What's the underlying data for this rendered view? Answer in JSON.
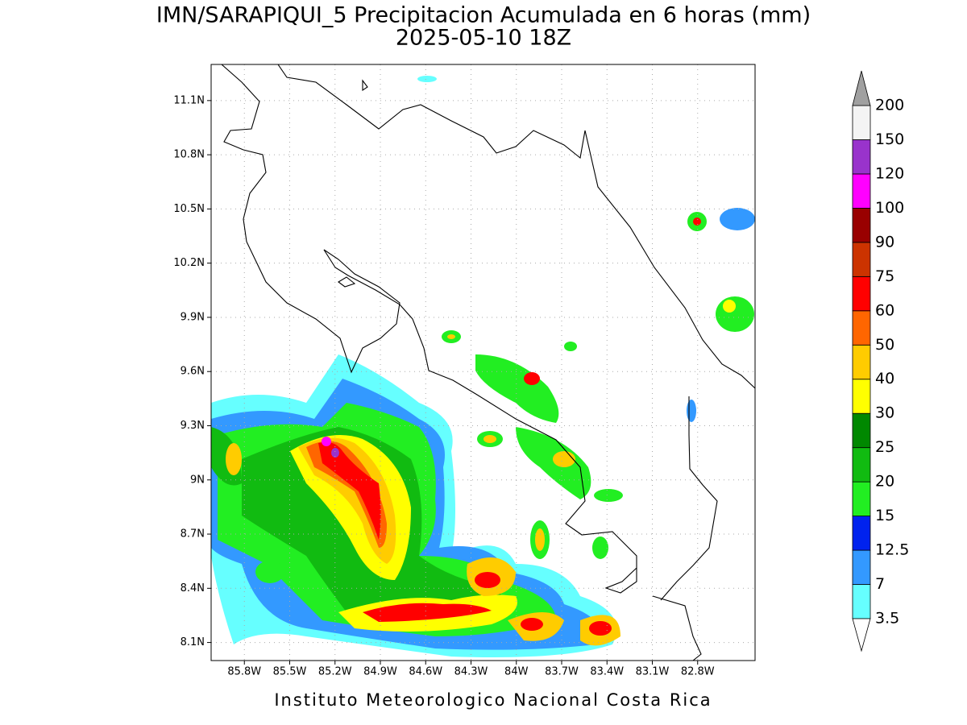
{
  "title": "IMN/SARAPIQUI_5 Precipitacion Acumulada en 6 horas (mm)",
  "subtitle": "2025-05-10 18Z",
  "footer": "Instituto Meteorologico Nacional Costa Rica",
  "lonlim": [
    -86.02,
    -82.42
  ],
  "latlim": [
    8.0,
    11.3
  ],
  "lon_ticks": [
    {
      "value": -85.8,
      "label": "85.8W"
    },
    {
      "value": -85.5,
      "label": "85.5W"
    },
    {
      "value": -85.2,
      "label": "85.2W"
    },
    {
      "value": -84.9,
      "label": "84.9W"
    },
    {
      "value": -84.6,
      "label": "84.6W"
    },
    {
      "value": -84.3,
      "label": "84.3W"
    },
    {
      "value": -84.0,
      "label": "84W"
    },
    {
      "value": -83.7,
      "label": "83.7W"
    },
    {
      "value": -83.4,
      "label": "83.4W"
    },
    {
      "value": -83.1,
      "label": "83.1W"
    },
    {
      "value": -82.8,
      "label": "82.8W"
    }
  ],
  "lat_ticks": [
    {
      "value": 8.1,
      "label": "8.1N"
    },
    {
      "value": 8.4,
      "label": "8.4N"
    },
    {
      "value": 8.7,
      "label": "8.7N"
    },
    {
      "value": 9.0,
      "label": "9N"
    },
    {
      "value": 9.3,
      "label": "9.3N"
    },
    {
      "value": 9.6,
      "label": "9.6N"
    },
    {
      "value": 9.9,
      "label": "9.9N"
    },
    {
      "value": 10.2,
      "label": "10.2N"
    },
    {
      "value": 10.5,
      "label": "10.5N"
    },
    {
      "value": 10.8,
      "label": "10.8N"
    },
    {
      "value": 11.1,
      "label": "11.1N"
    }
  ],
  "colorbar": {
    "levels": [
      3.5,
      7,
      12.5,
      15,
      20,
      25,
      30,
      40,
      50,
      60,
      75,
      90,
      100,
      120,
      150,
      200
    ],
    "colors": [
      "#66ffff",
      "#3399ff",
      "#0022ee",
      "#22ee22",
      "#11bb11",
      "#008800",
      "#ffff00",
      "#ffcc00",
      "#ff6600",
      "#ff0000",
      "#cc3300",
      "#990000",
      "#ff00ff",
      "#9933cc",
      "#f4f4f4"
    ],
    "over_color": "#a0a0a0",
    "under_color": "#ffffff"
  }
}
